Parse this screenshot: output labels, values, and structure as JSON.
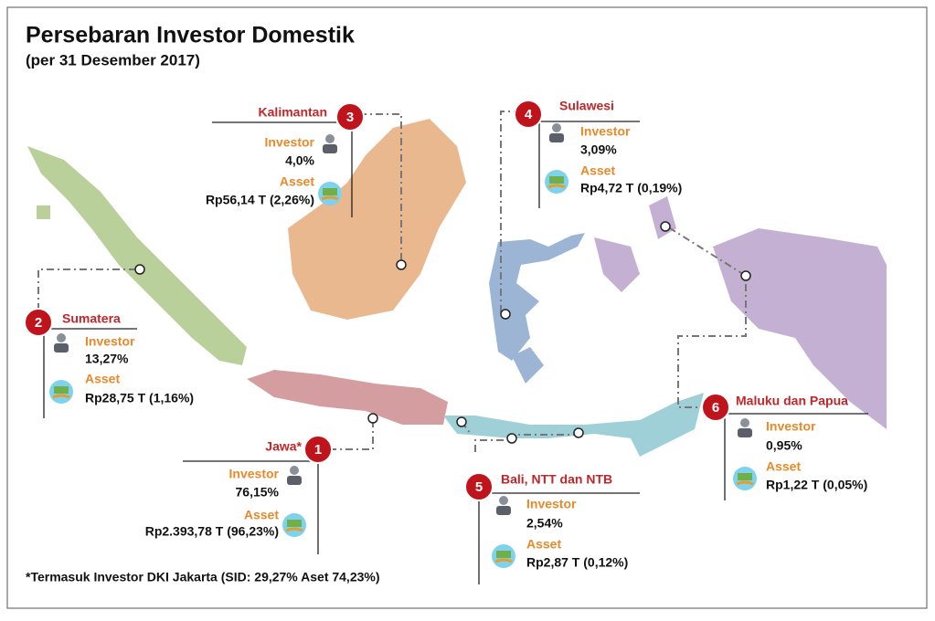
{
  "title": "Persebaran Investor Domestik",
  "subtitle": "(per 31 Desember 2017)",
  "regions": [
    {
      "number": "1",
      "name": "Jawa*",
      "investor_label": "Investor",
      "investor_value": "76,15%",
      "asset_label": "Asset",
      "asset_value": "Rp2.393,78 T (96,23%)"
    },
    {
      "number": "2",
      "name": "Sumatera",
      "investor_label": "Investor",
      "investor_value": "13,27%",
      "asset_label": "Asset",
      "asset_value": "Rp28,75 T (1,16%)"
    },
    {
      "number": "3",
      "name": "Kalimantan",
      "investor_label": "Investor",
      "investor_value": "4,0%",
      "asset_label": "Asset",
      "asset_value": "Rp56,14 T (2,26%)"
    },
    {
      "number": "4",
      "name": "Sulawesi",
      "investor_label": "Investor",
      "investor_value": "3,09%",
      "asset_label": "Asset",
      "asset_value": "Rp4,72 T (0,19%)"
    },
    {
      "number": "5",
      "name": "Bali, NTT dan NTB",
      "investor_label": "Investor",
      "investor_value": "2,54%",
      "asset_label": "Asset",
      "asset_value": "Rp2,87 T (0,12%)"
    },
    {
      "number": "6",
      "name": "Maluku dan Papua",
      "investor_label": "Investor",
      "investor_value": "0,95%",
      "asset_label": "Asset",
      "asset_value": "Rp1,22 T (0,05%)"
    }
  ],
  "footnote": "*Termasuk Investor DKI Jakarta (SID: 29,27% Aset 74,23%)"
}
